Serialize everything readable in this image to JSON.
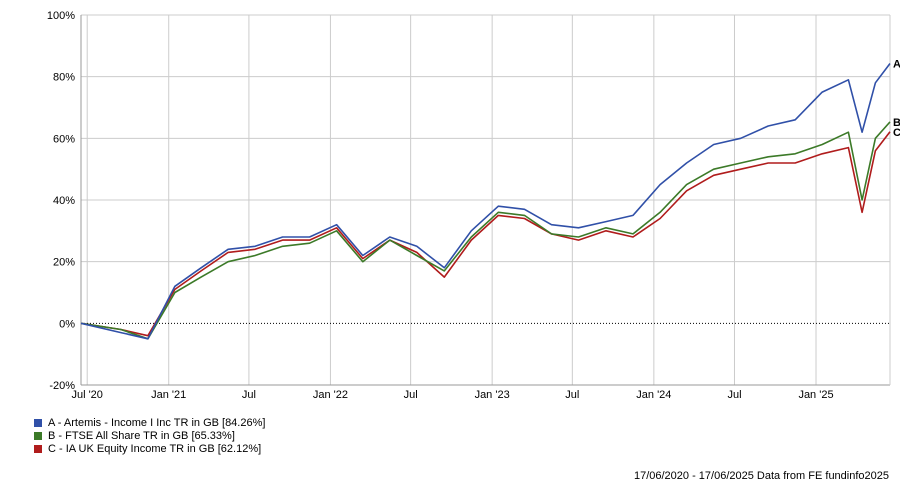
{
  "chart_data": {
    "type": "line",
    "title": "",
    "xlabel": "",
    "ylabel": "",
    "ylim": [
      -20,
      100
    ],
    "yticks": [
      "100%",
      "80%",
      "60%",
      "40%",
      "20%",
      "0%",
      "-20%"
    ],
    "xticks": [
      "Jul '20",
      "Jan '21",
      "Jul",
      "Jan '22",
      "Jul",
      "Jan '23",
      "Jul",
      "Jan '24",
      "Jul",
      "Jan '25"
    ],
    "grid": true,
    "legend_position": "bottom-left",
    "x": [
      "2020-06",
      "2020-09",
      "2020-11",
      "2021-01",
      "2021-03",
      "2021-05",
      "2021-07",
      "2021-09",
      "2021-11",
      "2022-01",
      "2022-03",
      "2022-05",
      "2022-07",
      "2022-09",
      "2022-11",
      "2023-01",
      "2023-03",
      "2023-05",
      "2023-07",
      "2023-09",
      "2023-11",
      "2024-01",
      "2024-03",
      "2024-05",
      "2024-07",
      "2024-09",
      "2024-11",
      "2025-01",
      "2025-03",
      "2025-04",
      "2025-05",
      "2025-06"
    ],
    "series": [
      {
        "name": "A - Artemis - Income I Inc TR in GB [84.26%]",
        "end_label": "A",
        "color": "#3050a8",
        "values": [
          0,
          -3,
          -5,
          12,
          18,
          24,
          25,
          28,
          28,
          32,
          22,
          28,
          25,
          18,
          30,
          38,
          37,
          32,
          31,
          33,
          35,
          45,
          52,
          58,
          60,
          64,
          66,
          75,
          79,
          62,
          78,
          84.26
        ]
      },
      {
        "name": "B - FTSE All Share TR in GB [65.33%]",
        "end_label": "B",
        "color": "#3c7a28",
        "values": [
          0,
          -2,
          -5,
          10,
          15,
          20,
          22,
          25,
          26,
          30,
          20,
          27,
          22,
          17,
          28,
          36,
          35,
          29,
          28,
          31,
          29,
          36,
          45,
          50,
          52,
          54,
          55,
          58,
          62,
          40,
          60,
          65.33
        ]
      },
      {
        "name": "C - IA UK Equity Income TR in GB [62.12%]",
        "end_label": "C",
        "color": "#b01c1c",
        "values": [
          0,
          -2,
          -4,
          11,
          17,
          23,
          24,
          27,
          27,
          31,
          21,
          27,
          23,
          15,
          27,
          35,
          34,
          29,
          27,
          30,
          28,
          34,
          43,
          48,
          50,
          52,
          52,
          55,
          57,
          36,
          56,
          62.12
        ]
      }
    ]
  },
  "footer": {
    "date_range": "17/06/2020 - 17/06/2025",
    "source": "Data from FE fundinfo2025"
  }
}
